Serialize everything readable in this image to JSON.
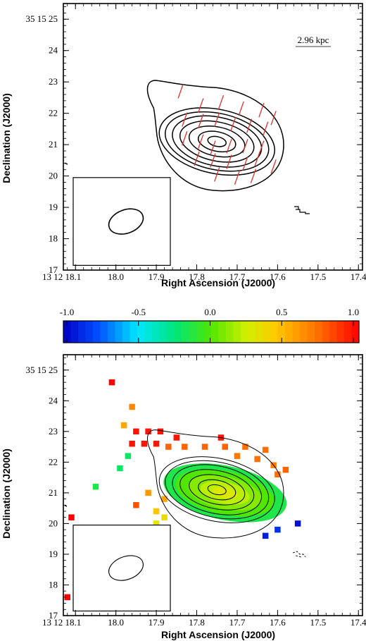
{
  "chart_data": [
    {
      "type": "contour",
      "xlabel": "Right Ascension (J2000)",
      "ylabel": "Declination (J2000)",
      "x_ticks": [
        "13 12 18.1",
        "18.0",
        "17.9",
        "17.8",
        "17.7",
        "17.6",
        "17.5",
        "17.4"
      ],
      "y_ticks": [
        "17",
        "18",
        "19",
        "20",
        "21",
        "22",
        "23",
        "24",
        "35 15 25"
      ],
      "xlim": [
        18.13,
        17.39
      ],
      "ylim": [
        17,
        25.5
      ],
      "scalebar_label": "2.96 kpc",
      "contour_peak": [
        17.75,
        21.1
      ],
      "contour_levels": [
        {
          "rx": 0.023,
          "ry": 0.25
        },
        {
          "rx": 0.047,
          "ry": 0.5
        },
        {
          "rx": 0.07,
          "ry": 0.75
        },
        {
          "rx": 0.093,
          "ry": 1.0
        },
        {
          "rx": 0.112,
          "ry": 1.25
        },
        {
          "rx": 0.13,
          "ry": 1.45
        },
        {
          "rx": 0.145,
          "ry": 1.65
        },
        {
          "rx": 0.165,
          "ry": 1.95
        }
      ],
      "beam": {
        "ra": 17.975,
        "dec": 18.55,
        "rx": 0.08,
        "ry": 0.68
      },
      "vectors": [
        [
          17.84,
          22.7
        ],
        [
          17.79,
          22.25
        ],
        [
          17.74,
          22.35
        ],
        [
          17.69,
          22.15
        ],
        [
          17.64,
          22.1
        ],
        [
          17.61,
          21.85
        ],
        [
          17.83,
          21.8
        ],
        [
          17.79,
          21.75
        ],
        [
          17.75,
          21.8
        ],
        [
          17.71,
          21.65
        ],
        [
          17.67,
          21.6
        ],
        [
          17.63,
          21.5
        ],
        [
          17.83,
          21.2
        ],
        [
          17.79,
          21.1
        ],
        [
          17.76,
          20.9
        ],
        [
          17.72,
          20.95
        ],
        [
          17.68,
          20.95
        ],
        [
          17.64,
          20.9
        ],
        [
          17.8,
          20.55
        ],
        [
          17.76,
          20.5
        ],
        [
          17.72,
          20.45
        ],
        [
          17.68,
          20.4
        ],
        [
          17.65,
          20.55
        ],
        [
          17.61,
          20.3
        ],
        [
          17.75,
          20.05
        ],
        [
          17.7,
          19.95
        ],
        [
          17.66,
          20.0
        ]
      ]
    },
    {
      "type": "heatmap",
      "xlabel": "Right Ascension (J2000)",
      "ylabel": "Declination (J2000)",
      "x_ticks": [
        "13 12 18.1",
        "18.0",
        "17.9",
        "17.8",
        "17.7",
        "17.6",
        "17.5",
        "17.4"
      ],
      "y_ticks": [
        "17",
        "18",
        "19",
        "20",
        "21",
        "22",
        "23",
        "24",
        "35 15 25"
      ],
      "xlim": [
        18.13,
        17.39
      ],
      "ylim": [
        17,
        25.5
      ],
      "colorbar_ticks": [
        "-1.0",
        "-0.5",
        "0.0",
        "0.5",
        "1.0"
      ],
      "colorbar_range": [
        -1.0,
        1.0
      ],
      "spectral_index_pixels": [
        [
          18.01,
          24.6,
          1.0
        ],
        [
          17.96,
          23.8,
          0.65
        ],
        [
          17.98,
          23.2,
          0.55
        ],
        [
          17.95,
          23.0,
          0.95
        ],
        [
          17.92,
          23.0,
          0.95
        ],
        [
          17.89,
          23.0,
          0.95
        ],
        [
          17.97,
          22.2,
          -0.2
        ],
        [
          17.99,
          21.8,
          -0.2
        ],
        [
          18.05,
          21.2,
          -0.15
        ],
        [
          17.96,
          22.6,
          0.95
        ],
        [
          17.93,
          22.6,
          0.95
        ],
        [
          17.9,
          22.6,
          0.95
        ],
        [
          17.85,
          22.8,
          0.95
        ],
        [
          17.74,
          22.8,
          0.95
        ],
        [
          17.87,
          22.5,
          0.75
        ],
        [
          17.83,
          22.5,
          0.75
        ],
        [
          17.78,
          22.5,
          0.75
        ],
        [
          17.73,
          22.5,
          0.75
        ],
        [
          17.68,
          22.5,
          0.72
        ],
        [
          17.63,
          22.4,
          0.72
        ],
        [
          17.7,
          22.2,
          0.7
        ],
        [
          17.65,
          22.1,
          0.72
        ],
        [
          17.61,
          21.9,
          0.68
        ],
        [
          17.58,
          21.75,
          0.75
        ],
        [
          17.6,
          21.6,
          0.72
        ],
        [
          17.92,
          21.0,
          0.6
        ],
        [
          17.88,
          20.8,
          0.55
        ],
        [
          17.95,
          20.6,
          0.8
        ],
        [
          17.9,
          20.4,
          0.45
        ],
        [
          17.88,
          20.2,
          0.35
        ],
        [
          17.9,
          20.0,
          0.3
        ],
        [
          17.63,
          19.6,
          -0.9
        ],
        [
          17.6,
          19.8,
          -0.85
        ],
        [
          17.55,
          20.0,
          -0.95
        ],
        [
          18.11,
          20.2,
          1.0
        ],
        [
          18.12,
          17.6,
          1.0
        ]
      ],
      "smooth_region": {
        "center": [
          17.73,
          21.0
        ],
        "rx": 0.155,
        "ry": 1.6,
        "values_center_to_edge": [
          0.28,
          0.2,
          0.1,
          0.0,
          -0.15
        ]
      },
      "contour_peak": [
        17.75,
        21.1
      ],
      "contour_levels": [
        {
          "rx": 0.023,
          "ry": 0.25
        },
        {
          "rx": 0.047,
          "ry": 0.5
        },
        {
          "rx": 0.07,
          "ry": 0.75
        },
        {
          "rx": 0.093,
          "ry": 1.0
        },
        {
          "rx": 0.112,
          "ry": 1.25
        },
        {
          "rx": 0.13,
          "ry": 1.45
        },
        {
          "rx": 0.145,
          "ry": 1.65
        },
        {
          "rx": 0.165,
          "ry": 1.95
        }
      ],
      "beam": {
        "ra": 17.975,
        "dec": 18.55,
        "rx": 0.08,
        "ry": 0.68
      }
    }
  ],
  "colors": {
    "vector": "#e03030",
    "axis": "#000000"
  }
}
